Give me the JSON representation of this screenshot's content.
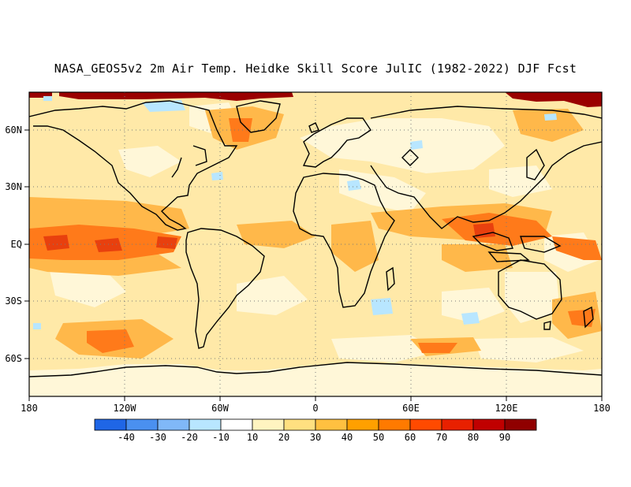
{
  "title": "NASA_GEOS5v2 2m Air Temp. Heidke Skill Score JulIC (1982-2022) DJF Fcst",
  "lat_labels": [
    "60N",
    "30N",
    "EQ",
    "30S",
    "60S"
  ],
  "lon_labels": [
    "180",
    "120W",
    "60W",
    "0",
    "60E",
    "120E",
    "180"
  ],
  "colorbar": {
    "colors": [
      "#1f66e6",
      "#4a90f0",
      "#80b8f8",
      "#b8e6ff",
      "#ffffff",
      "#fff4c0",
      "#ffe080",
      "#ffc040",
      "#ffa000",
      "#ff7a00",
      "#ff4a00",
      "#e82000",
      "#c00000",
      "#900000"
    ],
    "labels": [
      "-40",
      "-30",
      "-20",
      "-10",
      "10",
      "20",
      "30",
      "40",
      "50",
      "60",
      "70",
      "80",
      "90"
    ]
  },
  "map_colors": {
    "background": "#ffe9a8",
    "light": "#fff7d8",
    "orange": "#ffb84a",
    "deep_orange": "#ff7a1a",
    "red": "#e8400e",
    "arctic": "#9a0000",
    "negative": "#b8e6ff",
    "coast": "#000000",
    "grid": "#7a7a7a"
  }
}
